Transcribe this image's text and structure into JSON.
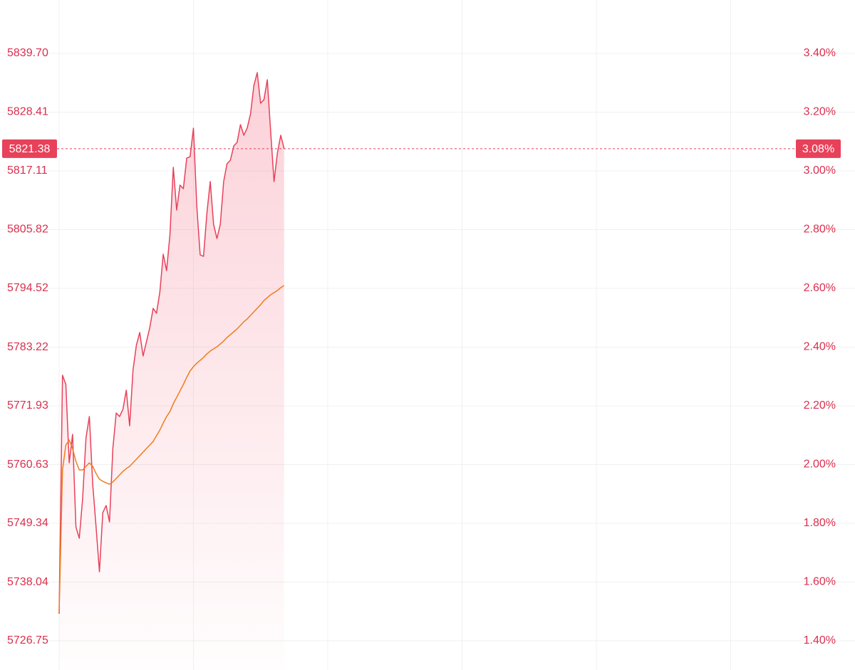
{
  "chart_data": {
    "type": "line",
    "grid": true,
    "xlim": [
      0,
      240
    ],
    "xticks": [
      0,
      40,
      80,
      120,
      160,
      200
    ],
    "ylim": [
      5721.14,
      5849.97
    ],
    "yticks": [
      5726.75,
      5738.04,
      5749.34,
      5760.63,
      5771.93,
      5783.22,
      5794.52,
      {
        "value": 5805.82,
        "label": "5805.82"
      },
      5817.11,
      5828.41,
      {
        "value": 5839.7,
        "label": "5839.70"
      }
    ],
    "y2lim": [
      1.3006,
      3.5818
    ],
    "y2ticks": [
      {
        "value": 1.4,
        "label": "1.40%"
      },
      {
        "value": 1.6,
        "label": "1.60%"
      },
      {
        "value": 1.8,
        "label": "1.80%"
      },
      {
        "value": 2.0,
        "label": "2.00%"
      },
      {
        "value": 2.2,
        "label": "2.20%"
      },
      {
        "value": 2.4,
        "label": "2.40%"
      },
      {
        "value": 2.6,
        "label": "2.60%"
      },
      {
        "value": 2.8,
        "label": "2.80%"
      },
      {
        "value": 3.0,
        "label": "3.00%"
      },
      {
        "value": 3.2,
        "label": "3.20%"
      },
      {
        "value": 3.4,
        "label": "3.40%"
      }
    ],
    "last_price": 5821.38,
    "last_change": {
      "value": 3.08,
      "label": "3.08%"
    },
    "series": [
      {
        "color": "#e8415a",
        "fill": true,
        "values": [
          5731.95,
          5777.82,
          5776.04,
          5760.98,
          5766.45,
          5748.66,
          5746.47,
          5754.13,
          5765.77,
          5769.88,
          5756.87,
          5748.66,
          5740.03,
          5751.39,
          5752.76,
          5749.61,
          5763.72,
          5770.56,
          5769.88,
          5771.25,
          5774.94,
          5768.1,
          5778.78,
          5783.57,
          5786.03,
          5781.51,
          5784.25,
          5786.99,
          5790.69,
          5789.73,
          5793.84,
          5801.09,
          5797.94,
          5804.79,
          5817.8,
          5809.58,
          5814.37,
          5813.69,
          5819.57,
          5819.85,
          5825.33,
          5810.27,
          5800.96,
          5800.68,
          5808.9,
          5815.06,
          5806.84,
          5804.1,
          5806.84,
          5815.06,
          5818.48,
          5819.16,
          5821.9,
          5822.59,
          5826.01,
          5823.96,
          5825.33,
          5828.06,
          5833.54,
          5836.0,
          5830.12,
          5830.8,
          5834.64,
          5824.64,
          5815.06,
          5820.53,
          5823.96,
          5821.38
        ]
      },
      {
        "color": "#f07c1c",
        "fill": false,
        "values": [
          5732.23,
          5759.61,
          5764.4,
          5765.36,
          5763.72,
          5761.25,
          5759.61,
          5759.61,
          5760.29,
          5760.98,
          5760.29,
          5758.92,
          5757.83,
          5757.42,
          5757.14,
          5756.87,
          5757.28,
          5757.97,
          5758.65,
          5759.33,
          5759.88,
          5760.29,
          5760.98,
          5761.66,
          5762.35,
          5763.03,
          5763.72,
          5764.4,
          5765.08,
          5766.18,
          5767.28,
          5768.64,
          5769.88,
          5770.83,
          5772.34,
          5773.57,
          5774.8,
          5776.04,
          5777.41,
          5778.64,
          5779.46,
          5780.14,
          5780.69,
          5781.24,
          5781.92,
          5782.47,
          5782.88,
          5783.29,
          5783.84,
          5784.39,
          5785.07,
          5785.62,
          5786.17,
          5786.72,
          5787.4,
          5788.09,
          5788.63,
          5789.32,
          5790.0,
          5790.69,
          5791.37,
          5792.19,
          5792.74,
          5793.29,
          5793.7,
          5794.11,
          5794.66,
          5795.07
        ]
      }
    ]
  }
}
